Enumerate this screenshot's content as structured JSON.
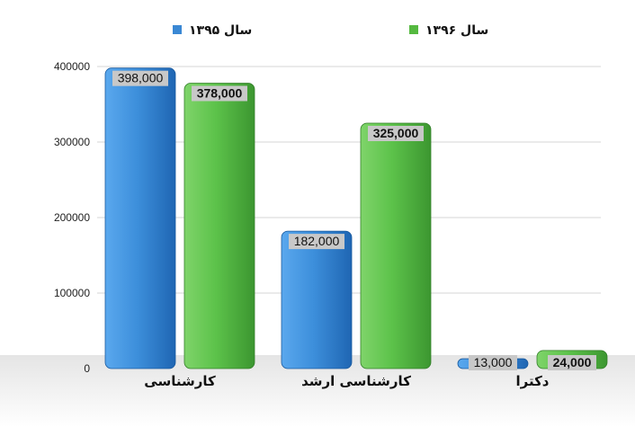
{
  "chart_data": {
    "type": "bar",
    "categories": [
      "کارشناسی",
      "کارشناسی ارشد",
      "دکترا"
    ],
    "series": [
      {
        "name": "سال ۱۳۹۵",
        "values": [
          398000,
          182000,
          13000
        ],
        "labels": [
          "398,000",
          "182,000",
          "13,000"
        ],
        "color": "#3a88d4"
      },
      {
        "name": "سال ۱۳۹۶",
        "values": [
          378000,
          325000,
          24000
        ],
        "labels": [
          "378,000",
          "325,000",
          "24,000"
        ],
        "color": "#55b940"
      }
    ],
    "y_ticks": [
      "0",
      "100000",
      "200000",
      "300000",
      "400000"
    ],
    "ylim": [
      0,
      400000
    ],
    "grid": true,
    "legend_position": "top"
  }
}
